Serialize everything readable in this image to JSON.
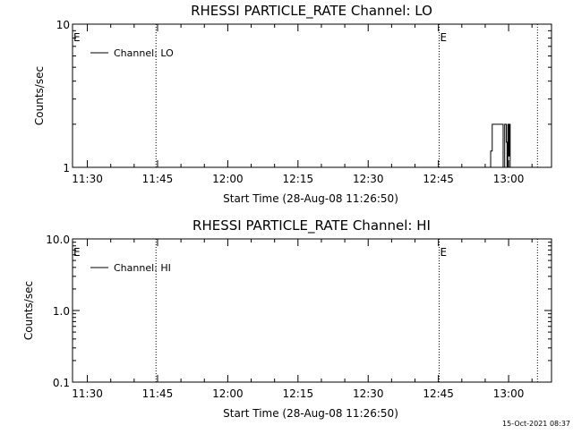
{
  "footer": {
    "timestamp": "15-Oct-2021 08:37"
  },
  "chart_data": [
    {
      "type": "line",
      "title": "RHESSI PARTICLE_RATE Channel: LO",
      "xlabel": "Start Time (28-Aug-08 11:26:50)",
      "ylabel": "Counts/sec",
      "yscale": "log",
      "ylim": [
        1,
        10
      ],
      "xlim": [
        "11:26:50",
        "13:09:10"
      ],
      "ytick_labels": [
        "1",
        "10"
      ],
      "ytick_values": [
        1,
        10
      ],
      "xtick_labels": [
        "11:30",
        "11:45",
        "12:00",
        "12:15",
        "12:30",
        "12:45",
        "13:00"
      ],
      "legend_entry": "Channel: LO",
      "legend_placement": "top-left",
      "grid": false,
      "markers": [
        {
          "time": "11:26:50",
          "label": "E",
          "line": false
        },
        {
          "time": "11:44:40",
          "label": "",
          "line": true
        },
        {
          "time": "12:45:10",
          "label": "E",
          "line": true
        },
        {
          "time": "13:06:10",
          "label": "",
          "line": true
        }
      ],
      "series": [
        {
          "points": [
            [
              "12:55:40",
              1
            ],
            [
              "12:56:10",
              1.3
            ],
            [
              "12:56:30",
              2
            ],
            [
              "12:58:40",
              2
            ],
            [
              "12:58:50",
              1
            ],
            [
              "12:59:10",
              2
            ],
            [
              "12:59:30",
              1.5
            ],
            [
              "12:59:40",
              1
            ],
            [
              "12:59:50",
              2
            ],
            [
              "13:00:00",
              1.2
            ],
            [
              "13:00:10",
              2
            ],
            [
              "13:00:20",
              1
            ]
          ]
        }
      ]
    },
    {
      "type": "line",
      "title": "RHESSI PARTICLE_RATE Channel: HI",
      "xlabel": "Start Time (28-Aug-08 11:26:50)",
      "ylabel": "Counts/sec",
      "yscale": "log",
      "ylim": [
        0.1,
        10
      ],
      "xlim": [
        "11:26:50",
        "13:09:10"
      ],
      "ytick_labels": [
        "0.1",
        "1.0",
        "10.0"
      ],
      "ytick_values": [
        0.1,
        1,
        10
      ],
      "xtick_labels": [
        "11:30",
        "11:45",
        "12:00",
        "12:15",
        "12:30",
        "12:45",
        "13:00"
      ],
      "legend_entry": "Channel: HI",
      "legend_placement": "top-left",
      "grid": false,
      "markers": [
        {
          "time": "11:26:50",
          "label": "E",
          "line": false
        },
        {
          "time": "11:44:40",
          "label": "",
          "line": true
        },
        {
          "time": "12:45:10",
          "label": "E",
          "line": true
        },
        {
          "time": "13:06:10",
          "label": "",
          "line": true
        }
      ],
      "series": [
        {
          "points": []
        }
      ]
    }
  ]
}
